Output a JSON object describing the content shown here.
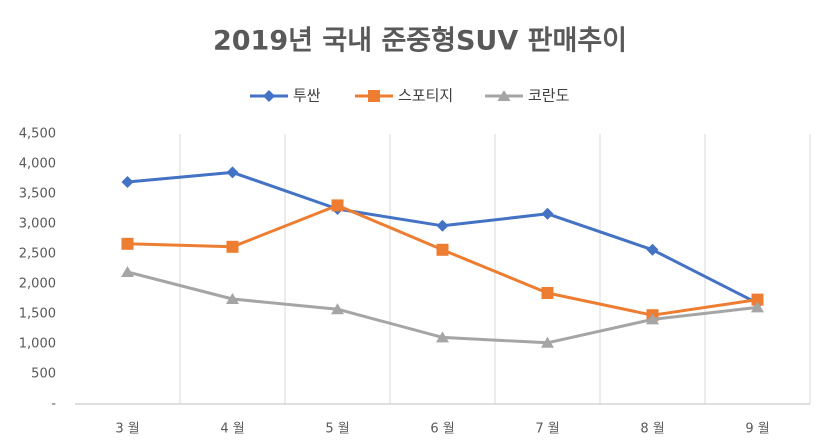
{
  "chart_data": {
    "type": "line",
    "title": "2019년 국내 준중형SUV 판매추이",
    "categories": [
      "3 월",
      "4 월",
      "5 월",
      "6 월",
      "7 월",
      "8 월",
      "9 월"
    ],
    "series": [
      {
        "name": "투싼",
        "color": "#4472c4",
        "marker": "diamond",
        "values": [
          3700,
          3860,
          3250,
          2970,
          3170,
          2570,
          1680
        ]
      },
      {
        "name": "스포티지",
        "color": "#ed7d31",
        "marker": "square",
        "values": [
          2670,
          2620,
          3310,
          2570,
          1850,
          1480,
          1740
        ]
      },
      {
        "name": "코란도",
        "color": "#a5a5a5",
        "marker": "triangle",
        "values": [
          2200,
          1750,
          1580,
          1110,
          1020,
          1410,
          1610
        ]
      }
    ],
    "ylim": [
      0,
      4500
    ],
    "yticks": [
      {
        "value": 0,
        "label": "-"
      },
      500,
      {
        "value": 1000,
        "label": "1,000"
      },
      {
        "value": 1500,
        "label": "1,500"
      },
      {
        "value": 2000,
        "label": "2,000"
      },
      {
        "value": 2500,
        "label": "2,500"
      },
      {
        "value": 3000,
        "label": "3,000"
      },
      {
        "value": 3500,
        "label": "3,500"
      },
      {
        "value": 4000,
        "label": "4,000"
      },
      {
        "value": 4500,
        "label": "4,500"
      }
    ],
    "grid": "vertical",
    "legend": "top"
  }
}
